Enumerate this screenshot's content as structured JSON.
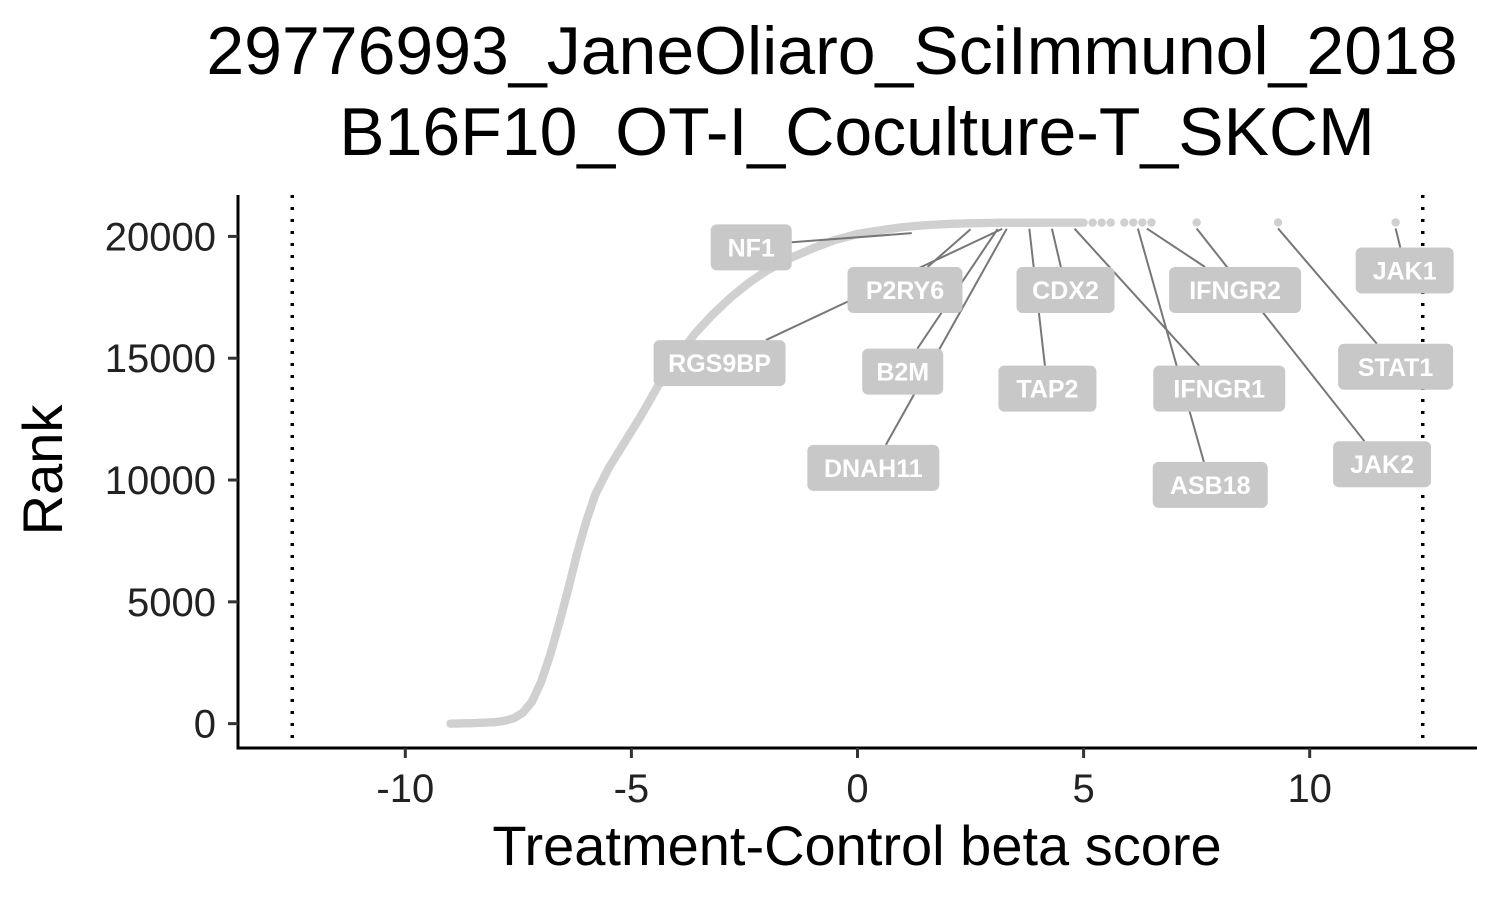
{
  "chart_data": {
    "type": "scatter",
    "title_lines": [
      "29776993_JaneOliaro_SciImmunol_2018",
      "B16F10_OT-I_Coculture-T_SKCM"
    ],
    "xlabel": "Treatment-Control beta score",
    "ylabel": "Rank",
    "xlim": [
      -13.7,
      13.7
    ],
    "ylim": [
      -1000,
      21700
    ],
    "x_ticks": [
      -10,
      -5,
      0,
      5,
      10
    ],
    "y_ticks": [
      0,
      5000,
      10000,
      15000,
      20000
    ],
    "threshold_lines": [
      -12.5,
      12.5
    ],
    "grid": false,
    "legend": "none",
    "colors": {
      "points": "#d0d0d0",
      "label_box": "#c8c8c8",
      "label_text": "#ffffff",
      "leader_line": "#777777",
      "threshold_line": "#000000"
    },
    "curve_points": [
      [
        -9.0,
        0
      ],
      [
        -8.5,
        20
      ],
      [
        -8.0,
        60
      ],
      [
        -7.8,
        120
      ],
      [
        -7.6,
        220
      ],
      [
        -7.4,
        450
      ],
      [
        -7.2,
        900
      ],
      [
        -7.0,
        1700
      ],
      [
        -6.8,
        2800
      ],
      [
        -6.6,
        4100
      ],
      [
        -6.4,
        5500
      ],
      [
        -6.2,
        7000
      ],
      [
        -6.0,
        8300
      ],
      [
        -5.8,
        9400
      ],
      [
        -5.5,
        10500
      ],
      [
        -5.2,
        11400
      ],
      [
        -4.8,
        12600
      ],
      [
        -4.4,
        13900
      ],
      [
        -4.0,
        15000
      ],
      [
        -3.6,
        16000
      ],
      [
        -3.2,
        16800
      ],
      [
        -2.8,
        17500
      ],
      [
        -2.4,
        18100
      ],
      [
        -2.0,
        18600
      ],
      [
        -1.5,
        19100
      ],
      [
        -1.0,
        19500
      ],
      [
        -0.5,
        19850
      ],
      [
        0.0,
        20100
      ],
      [
        0.5,
        20250
      ],
      [
        1.0,
        20380
      ],
      [
        1.5,
        20460
      ],
      [
        2.0,
        20510
      ],
      [
        2.5,
        20540
      ],
      [
        3.0,
        20555
      ],
      [
        3.5,
        20560
      ],
      [
        4.0,
        20562
      ],
      [
        4.5,
        20563
      ],
      [
        5.0,
        20564
      ]
    ],
    "outlier_points": [
      [
        5.2,
        20565
      ],
      [
        5.4,
        20566
      ],
      [
        5.6,
        20567
      ],
      [
        5.9,
        20568
      ],
      [
        6.1,
        20569
      ],
      [
        6.3,
        20570
      ],
      [
        6.5,
        20571
      ],
      [
        7.5,
        20572
      ],
      [
        9.3,
        20573
      ],
      [
        11.9,
        20574
      ]
    ],
    "labeled_genes": [
      {
        "gene": "NF1",
        "x": 1.2,
        "y": 20380,
        "label_x": -2.35,
        "label_y": 19550
      },
      {
        "gene": "P2RY6",
        "x": 2.5,
        "y": 20540,
        "label_x": 1.05,
        "label_y": 17800
      },
      {
        "gene": "RGS9BP",
        "x": 3.2,
        "y": 20555,
        "label_x": -3.05,
        "label_y": 14800
      },
      {
        "gene": "B2M",
        "x": 3.1,
        "y": 20555,
        "label_x": 1.0,
        "label_y": 14450
      },
      {
        "gene": "DNAH11",
        "x": 3.3,
        "y": 20558,
        "label_x": 0.35,
        "label_y": 10500
      },
      {
        "gene": "CDX2",
        "x": 4.3,
        "y": 20562,
        "label_x": 4.6,
        "label_y": 17800
      },
      {
        "gene": "TAP2",
        "x": 3.8,
        "y": 20561,
        "label_x": 4.2,
        "label_y": 13750
      },
      {
        "gene": "IFNGR2",
        "x": 6.4,
        "y": 20570,
        "label_x": 8.35,
        "label_y": 17800
      },
      {
        "gene": "IFNGR1",
        "x": 4.8,
        "y": 20563,
        "label_x": 8.0,
        "label_y": 13750
      },
      {
        "gene": "ASB18",
        "x": 6.2,
        "y": 20569,
        "label_x": 7.8,
        "label_y": 9800
      },
      {
        "gene": "JAK1",
        "x": 11.9,
        "y": 20574,
        "label_x": 12.1,
        "label_y": 18600
      },
      {
        "gene": "STAT1",
        "x": 9.3,
        "y": 20573,
        "label_x": 11.9,
        "label_y": 14650
      },
      {
        "gene": "JAK2",
        "x": 7.5,
        "y": 20572,
        "label_x": 11.6,
        "label_y": 10650
      }
    ]
  }
}
